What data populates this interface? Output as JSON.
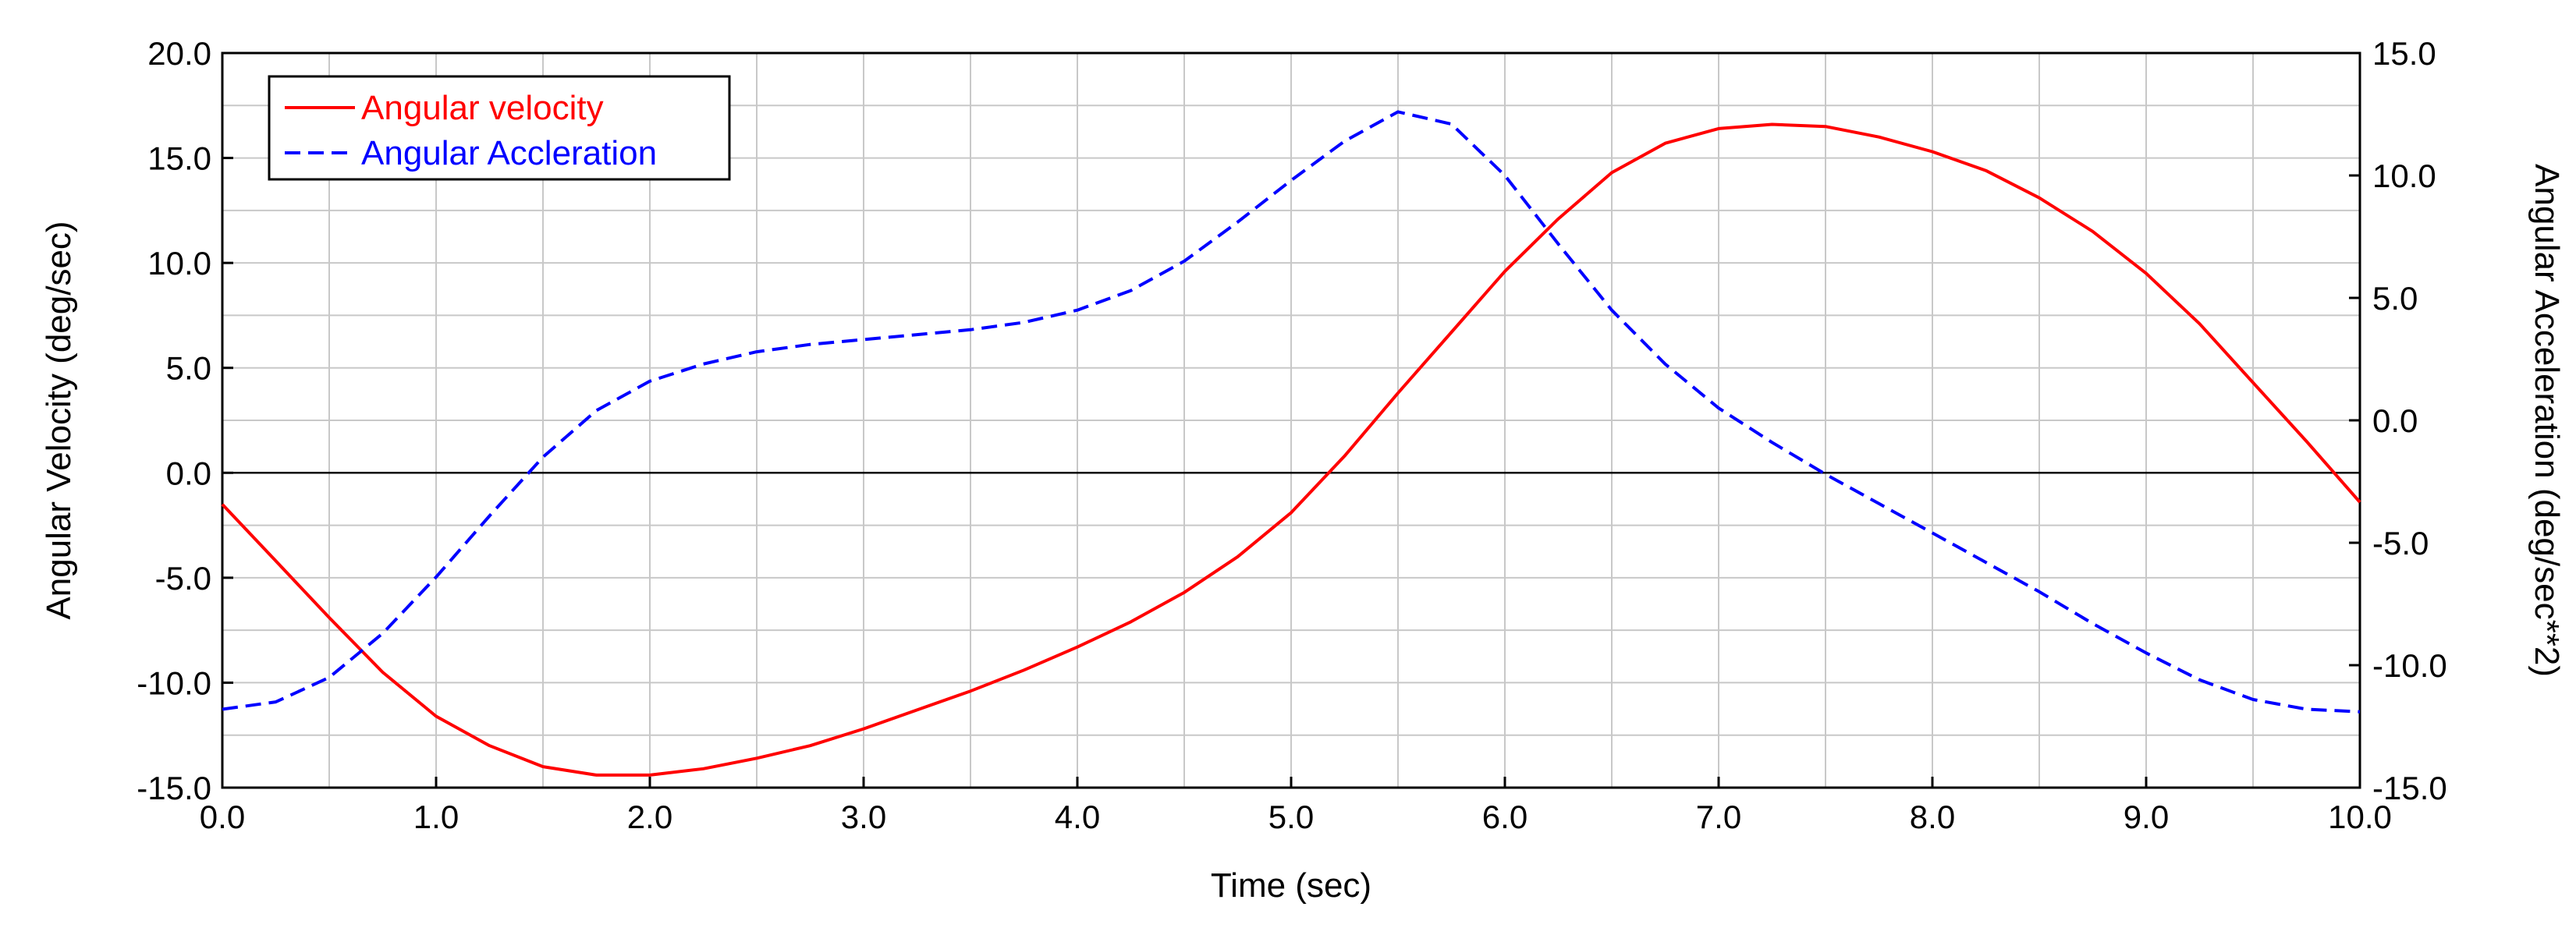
{
  "chart_data": {
    "type": "line",
    "title": "",
    "xlabel": "Time (sec)",
    "ylabel_left": "Angular Velocity (deg/sec)",
    "ylabel_right": "Angular Acceleration (deg/sec**2)",
    "xlim": [
      0,
      10
    ],
    "ylim_left": [
      -15,
      20
    ],
    "ylim_right": [
      -15,
      15
    ],
    "x_ticks": [
      "0.0",
      "1.0",
      "2.0",
      "3.0",
      "4.0",
      "5.0",
      "6.0",
      "7.0",
      "8.0",
      "9.0",
      "10.0"
    ],
    "y_left_ticks": [
      "20.0",
      "15.0",
      "10.0",
      "5.0",
      "0.0",
      "-5.0",
      "-10.0",
      "-15.0"
    ],
    "y_right_ticks": [
      "15.0",
      "10.0",
      "5.0",
      "0.0",
      "-5.0",
      "-10.0",
      "-15.0"
    ],
    "grid": true,
    "legend_position": "top-left",
    "series": [
      {
        "name": "Angular velocity",
        "axis": "left",
        "color": "#ff0000",
        "style": "solid",
        "x": [
          0,
          0.25,
          0.5,
          0.75,
          1.0,
          1.25,
          1.5,
          1.75,
          2.0,
          2.25,
          2.5,
          2.75,
          3.0,
          3.25,
          3.5,
          3.75,
          4.0,
          4.25,
          4.5,
          4.75,
          5.0,
          5.25,
          5.5,
          5.75,
          6.0,
          6.25,
          6.5,
          6.75,
          7.0,
          7.25,
          7.5,
          7.75,
          8.0,
          8.25,
          8.5,
          8.75,
          9.0,
          9.25,
          9.5,
          9.75,
          10.0
        ],
        "values": [
          -1.5,
          -4.2,
          -6.9,
          -9.5,
          -11.6,
          -13.0,
          -14.0,
          -14.4,
          -14.4,
          -14.1,
          -13.6,
          -13.0,
          -12.2,
          -11.3,
          -10.4,
          -9.4,
          -8.3,
          -7.1,
          -5.7,
          -4.0,
          -1.9,
          0.8,
          3.8,
          6.7,
          9.6,
          12.1,
          14.3,
          15.7,
          16.4,
          16.6,
          16.5,
          16.0,
          15.3,
          14.4,
          13.1,
          11.5,
          9.5,
          7.1,
          4.3,
          1.5,
          -1.4
        ]
      },
      {
        "name": "Angular Accleration",
        "axis": "right",
        "color": "#0000ff",
        "style": "dashed",
        "x": [
          0,
          0.25,
          0.5,
          0.75,
          1.0,
          1.25,
          1.5,
          1.75,
          2.0,
          2.25,
          2.5,
          2.75,
          3.0,
          3.25,
          3.5,
          3.75,
          4.0,
          4.25,
          4.5,
          4.75,
          5.0,
          5.25,
          5.5,
          5.75,
          6.0,
          6.25,
          6.5,
          6.75,
          7.0,
          7.25,
          7.5,
          7.75,
          8.0,
          8.25,
          8.5,
          8.75,
          9.0,
          9.25,
          9.5,
          9.75,
          10.0
        ],
        "values": [
          -11.8,
          -11.5,
          -10.5,
          -8.7,
          -6.4,
          -3.9,
          -1.5,
          0.4,
          1.6,
          2.3,
          2.8,
          3.1,
          3.3,
          3.5,
          3.7,
          4.0,
          4.5,
          5.3,
          6.5,
          8.1,
          9.8,
          11.4,
          12.6,
          12.1,
          10.0,
          7.2,
          4.5,
          2.3,
          0.5,
          -0.9,
          -2.2,
          -3.4,
          -4.6,
          -5.8,
          -7.0,
          -8.3,
          -9.5,
          -10.6,
          -11.4,
          -11.8,
          -11.9
        ]
      }
    ]
  }
}
